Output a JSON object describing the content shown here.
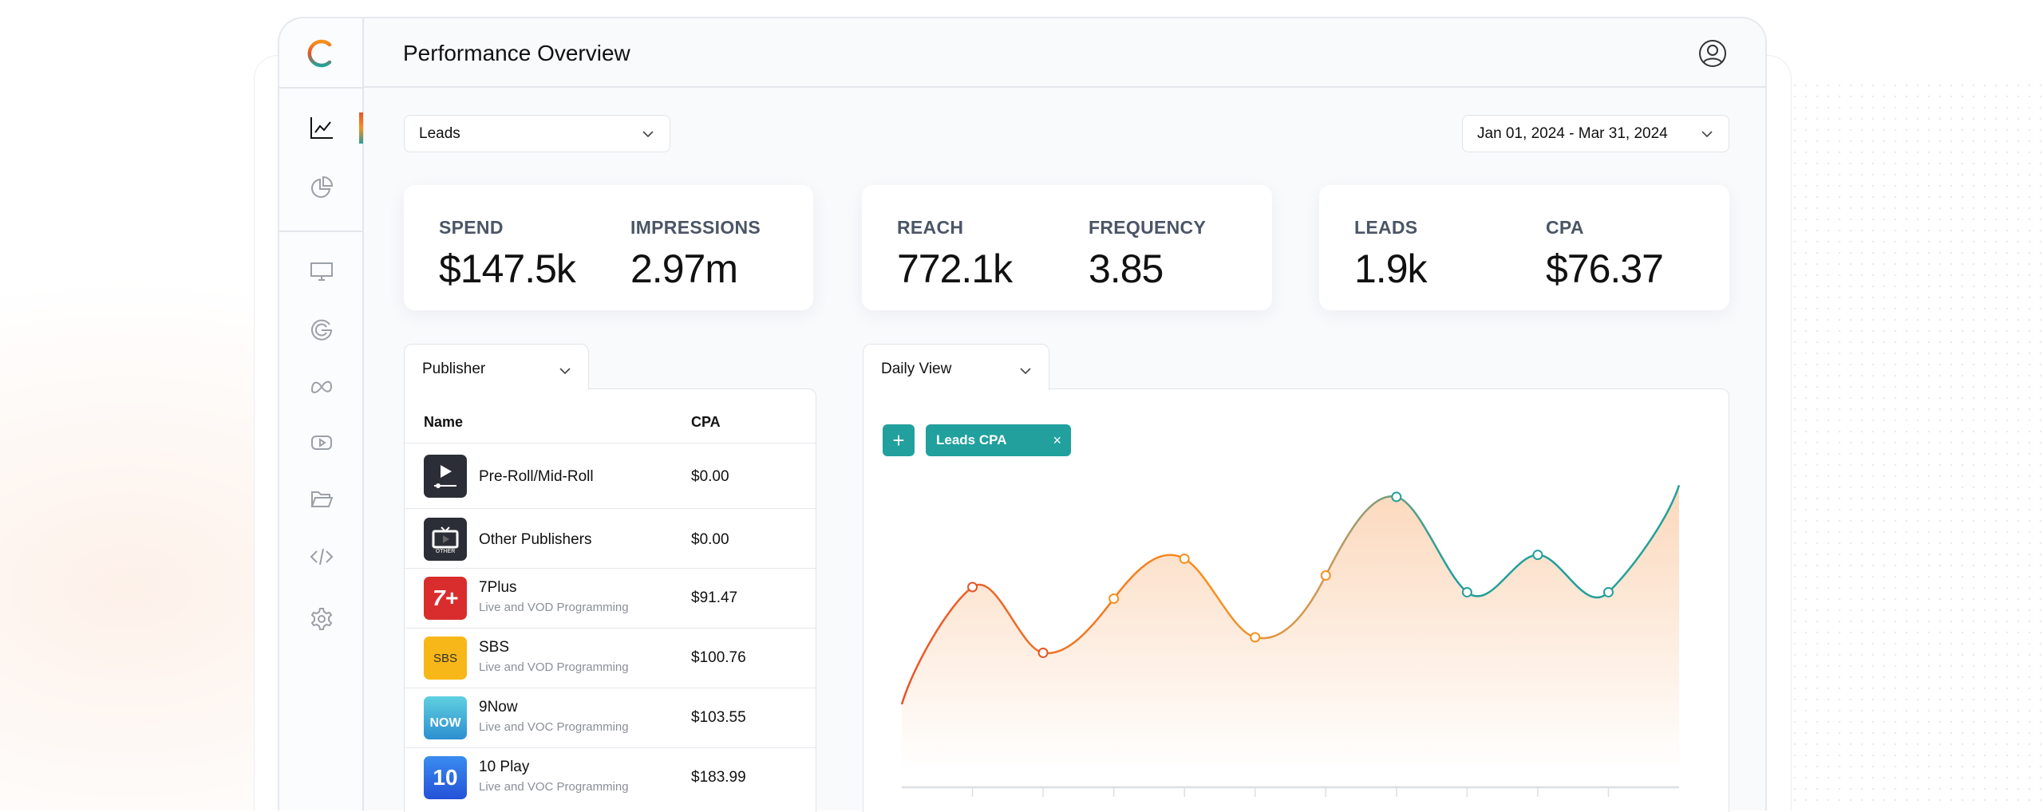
{
  "header": {
    "title": "Performance Overview"
  },
  "filters": {
    "metric": "Leads",
    "date_range": "Jan 01, 2024 - Mar 31, 2024"
  },
  "kpis": [
    {
      "label": "SPEND",
      "value": "$147.5k"
    },
    {
      "label": "IMPRESSIONS",
      "value": "2.97m"
    },
    {
      "label": "REACH",
      "value": "772.1k"
    },
    {
      "label": "FREQUENCY",
      "value": "3.85"
    },
    {
      "label": "LEADS",
      "value": "1.9k"
    },
    {
      "label": "CPA",
      "value": "$76.37"
    }
  ],
  "table": {
    "group_by": "Publisher",
    "columns": [
      "Name",
      "CPA"
    ],
    "rows": [
      {
        "name": "Pre-Roll/Mid-Roll",
        "sub": "",
        "cpa": "$0.00",
        "logo": "play-logo"
      },
      {
        "name": "Other Publishers",
        "sub": "",
        "cpa": "$0.00",
        "logo": "tv-other-logo",
        "logo_text": "OTHER"
      },
      {
        "name": "7Plus",
        "sub": "Live and VOD Programming",
        "cpa": "$91.47",
        "logo": "7plus-logo",
        "logo_text": "7+"
      },
      {
        "name": "SBS",
        "sub": "Live and VOD Programming",
        "cpa": "$100.76",
        "logo": "sbs-logo",
        "logo_text": "SBS"
      },
      {
        "name": "9Now",
        "sub": "Live and VOC Programming",
        "cpa": "$103.55",
        "logo": "9now-logo",
        "logo_text": "NOW"
      },
      {
        "name": "10 Play",
        "sub": "Live and VOC Programming",
        "cpa": "$183.99",
        "logo": "10play-logo",
        "logo_text": "10"
      }
    ]
  },
  "chart_panel": {
    "view": "Daily View",
    "add_label": "+",
    "series_chip": "Leads CPA",
    "chip_close": "×"
  },
  "chart_data": {
    "type": "area",
    "title": "",
    "xlabel": "",
    "ylabel": "",
    "series": [
      {
        "name": "Leads CPA",
        "values": [
          52,
          143,
          92,
          134,
          165,
          104,
          152,
          213,
          139,
          168,
          139,
          222
        ]
      }
    ],
    "x": [
      0,
      1,
      2,
      3,
      4,
      5,
      6,
      7,
      8,
      9,
      10,
      11
    ],
    "marker_indices": [
      1,
      2,
      3,
      4,
      5,
      6,
      7,
      8,
      9,
      10
    ],
    "ylim": [
      0,
      260
    ],
    "grid": false,
    "colors": {
      "start": "#e8542a",
      "mid": "#f7901e",
      "end": "#22a09b",
      "fill": "#fbd6b8"
    }
  }
}
